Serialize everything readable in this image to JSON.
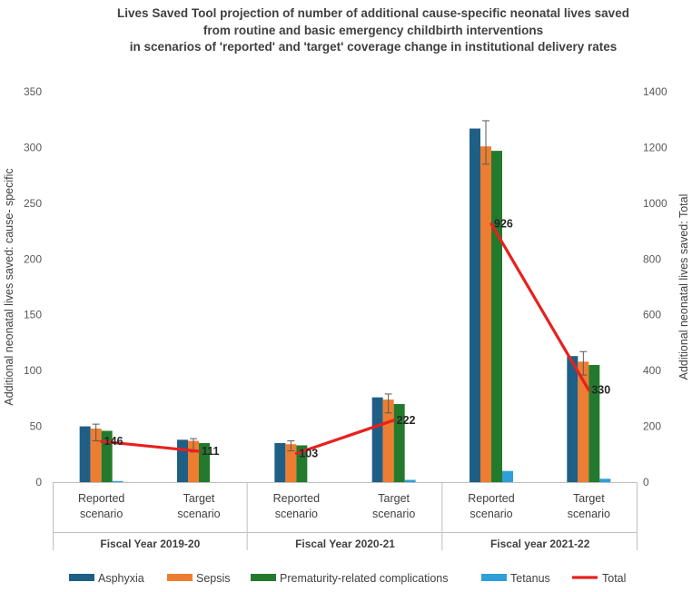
{
  "chart_data": {
    "type": "bar",
    "title_lines": [
      "Lives Saved Tool projection of number of additional cause-specific neonatal lives saved",
      "from routine and basic emergency childbirth interventions",
      "in scenarios of 'reported' and 'target' coverage change in  institutional delivery rates"
    ],
    "ylabel": "Additional neonatal lives saved: cause- specific",
    "y2label": "Additional neonatal lives saved: Total",
    "ylim": [
      0,
      350
    ],
    "y_ticks": [
      0,
      50,
      100,
      150,
      200,
      250,
      300,
      350
    ],
    "y2lim": [
      0,
      1400
    ],
    "y2_ticks": [
      0,
      200,
      400,
      600,
      800,
      1000,
      1200,
      1400
    ],
    "groups": [
      {
        "label": "Fiscal Year 2019-20",
        "categories": [
          [
            "Reported",
            "scenario"
          ],
          [
            "Target",
            "scenario"
          ]
        ]
      },
      {
        "label": "Fiscal Year 2020-21",
        "categories": [
          [
            "Reported",
            "scenario"
          ],
          [
            "Target",
            "scenario"
          ]
        ]
      },
      {
        "label": "Fiscal year 2021-22",
        "categories": [
          [
            "Reported",
            "scenario"
          ],
          [
            "Target",
            "scenario"
          ]
        ]
      }
    ],
    "series": [
      {
        "name": "Asphyxia",
        "color": "#1f5f86",
        "values": [
          50,
          38,
          35,
          76,
          317,
          113
        ]
      },
      {
        "name": "Sepsis",
        "color": "#ed7d31",
        "values": [
          48,
          37,
          34,
          74,
          301,
          108
        ]
      },
      {
        "name": "Prematurity-related complications",
        "color": "#237a2d",
        "values": [
          46,
          35,
          33,
          70,
          297,
          105
        ]
      },
      {
        "name": "Tetanus",
        "color": "#2e9fd8",
        "values": [
          1,
          0,
          0,
          2,
          10,
          3
        ]
      }
    ],
    "error_bars": [
      {
        "series": "Sepsis",
        "low": [
          37,
          27,
          28,
          62,
          285,
          96
        ],
        "high": [
          52,
          39,
          37,
          79,
          324,
          117
        ]
      }
    ],
    "total": {
      "name": "Total",
      "color": "#e8201e",
      "axis": "right",
      "values": [
        146,
        111,
        103,
        222,
        926,
        330
      ],
      "labels": [
        "146",
        "111",
        "103",
        "222",
        "926",
        "330"
      ]
    },
    "legend_position": "bottom"
  }
}
